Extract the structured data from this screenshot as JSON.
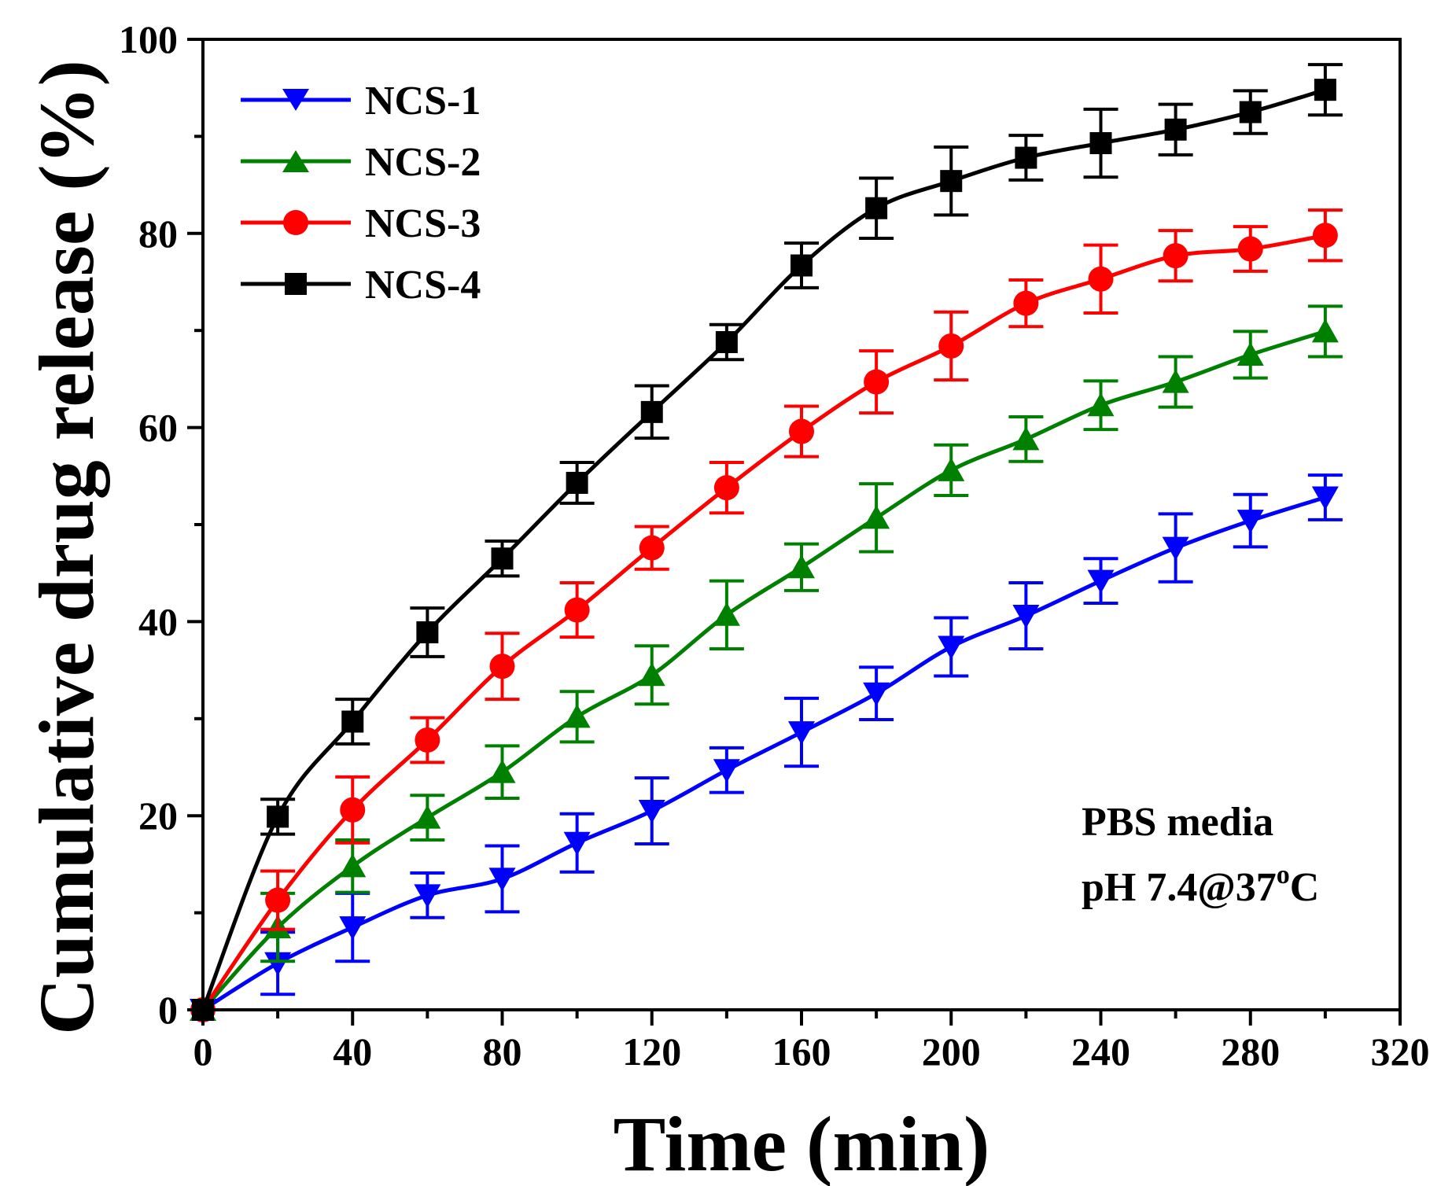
{
  "chart_data": {
    "type": "line",
    "xlabel": "Time (min)",
    "ylabel": "Cumulative drug release (%)",
    "xlim": [
      0,
      320
    ],
    "ylim": [
      0,
      100
    ],
    "xticks": [
      "0",
      "40",
      "80",
      "120",
      "160",
      "200",
      "240",
      "280",
      "320"
    ],
    "yticks": [
      "0",
      "20",
      "40",
      "60",
      "80",
      "100"
    ],
    "grid": false,
    "legend_position": "top-left",
    "annotation": {
      "line1": "PBS media",
      "line2_main": "pH 7.4@37",
      "line2_sup": "o",
      "line2_end": "C"
    },
    "x": [
      0,
      20,
      40,
      60,
      80,
      100,
      120,
      140,
      160,
      180,
      200,
      220,
      240,
      260,
      280,
      300
    ],
    "series": [
      {
        "name": "NCS-1",
        "color": "#0000ff",
        "marker": "triangle-down",
        "values": [
          0,
          4.8,
          8.5,
          11.8,
          13.5,
          17.2,
          20.5,
          24.7,
          28.6,
          32.6,
          37.4,
          40.6,
          44.2,
          47.6,
          50.4,
          52.8
        ],
        "errors": [
          0.5,
          3.2,
          3.5,
          2.3,
          3.4,
          3.0,
          3.4,
          2.3,
          3.5,
          2.7,
          3.0,
          3.4,
          2.3,
          3.5,
          2.7,
          2.3
        ]
      },
      {
        "name": "NCS-2",
        "color": "#008000",
        "marker": "triangle-up",
        "values": [
          0,
          8.5,
          14.8,
          19.8,
          24.5,
          30.2,
          34.5,
          40.7,
          45.6,
          50.7,
          55.6,
          58.8,
          62.3,
          64.7,
          67.5,
          69.9
        ],
        "errors": [
          0.5,
          3.5,
          2.7,
          2.3,
          2.7,
          2.6,
          3.0,
          3.5,
          2.4,
          3.5,
          2.6,
          2.3,
          2.5,
          2.6,
          2.4,
          2.6
        ]
      },
      {
        "name": "NCS-3",
        "color": "#ff0000",
        "marker": "circle",
        "values": [
          0,
          11.3,
          20.6,
          27.8,
          35.4,
          41.2,
          47.6,
          53.8,
          59.6,
          64.7,
          68.4,
          72.8,
          75.3,
          77.7,
          78.4,
          79.8
        ],
        "errors": [
          0.5,
          3.0,
          3.4,
          2.3,
          3.4,
          2.8,
          2.2,
          2.6,
          2.6,
          3.2,
          3.5,
          2.4,
          3.5,
          2.6,
          2.3,
          2.6
        ]
      },
      {
        "name": "NCS-4",
        "color": "#000000",
        "marker": "square",
        "values": [
          0,
          19.9,
          29.7,
          38.9,
          46.5,
          54.3,
          61.6,
          68.8,
          76.7,
          82.6,
          85.4,
          87.8,
          89.3,
          90.7,
          92.5,
          94.8
        ],
        "errors": [
          0.5,
          1.8,
          2.3,
          2.5,
          1.8,
          2.1,
          2.7,
          1.8,
          2.3,
          3.1,
          3.5,
          2.3,
          3.5,
          2.6,
          2.2,
          2.6
        ]
      }
    ]
  }
}
